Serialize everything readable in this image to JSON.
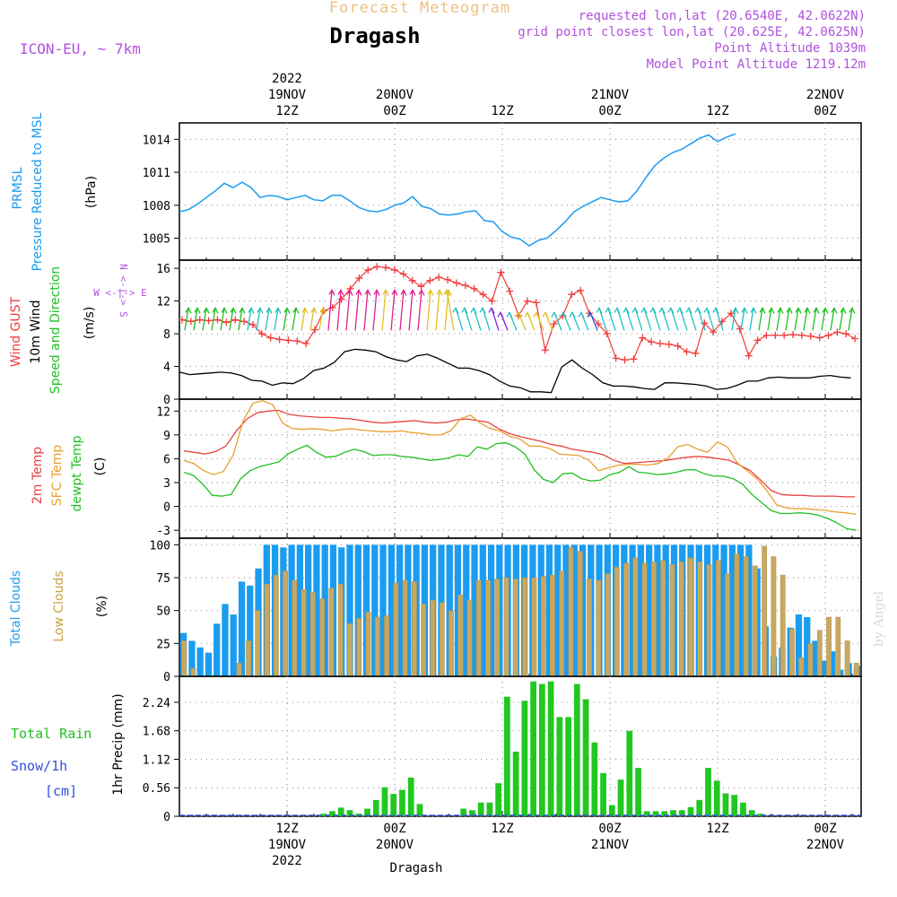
{
  "header": {
    "product_title": "Forecast Meteogram",
    "station": "Dragash",
    "model": "ICON-EU, ~ 7km",
    "requested": "requested lon,lat (20.6540E, 42.0622N)",
    "gridpoint": "grid point closest lon,lat (20.625E, 42.0625N)",
    "point_alt": "Point Altitude 1039m",
    "model_alt": "Model Point Altitude 1219.12m",
    "footer_station": "Dragash",
    "watermark": "by Angel"
  },
  "colors": {
    "pressure": "#1a9cf0",
    "gust": "#f03c3c",
    "wind10m": "#000000",
    "wind_label": "#20c020",
    "temp2m": "#e84040",
    "sfctemp": "#e8a030",
    "dewpoint": "#20c020",
    "total_clouds": "#1a9cf0",
    "low_clouds": "#c8a860",
    "rain": "#20c820",
    "snow_label": "#3050e0",
    "header_purple": "#b050e0",
    "title_orange": "#f0c080"
  },
  "time_axis": {
    "top": [
      {
        "h": 12,
        "l1": "2022",
        "l2": "19NOV",
        "l3": "12Z"
      },
      {
        "h": 24,
        "l1": "",
        "l2": "20NOV",
        "l3": "00Z"
      },
      {
        "h": 36,
        "l1": "",
        "l2": "",
        "l3": "12Z"
      },
      {
        "h": 48,
        "l1": "",
        "l2": "21NOV",
        "l3": "00Z"
      },
      {
        "h": 60,
        "l1": "",
        "l2": "",
        "l3": "12Z"
      },
      {
        "h": 72,
        "l1": "",
        "l2": "22NOV",
        "l3": "00Z"
      }
    ],
    "bottom": [
      {
        "h": 12,
        "l1": "12Z",
        "l2": "19NOV",
        "l3": "2022"
      },
      {
        "h": 24,
        "l1": "00Z",
        "l2": "20NOV",
        "l3": ""
      },
      {
        "h": 36,
        "l1": "12Z",
        "l2": "",
        "l3": ""
      },
      {
        "h": 48,
        "l1": "00Z",
        "l2": "21NOV",
        "l3": ""
      },
      {
        "h": 60,
        "l1": "12Z",
        "l2": "",
        "l3": ""
      },
      {
        "h": 72,
        "l1": "00Z",
        "l2": "22NOV",
        "l3": ""
      }
    ]
  },
  "panel_labels": {
    "pressure": {
      "line1": "PRMSL",
      "line2": "Pressure Reduced to MSL",
      "unit": "(hPa)"
    },
    "wind": {
      "line1": "Wind GUST",
      "line2": "10m Wind",
      "line3": "Speed and Direction",
      "unit": "(m/s)",
      "compass_ns": "N <-|-> S",
      "compass_we": "W <-|-> E"
    },
    "temp": {
      "line1": "2m Temp",
      "line2": "SFC Temp",
      "line3": "dewpt Temp",
      "unit": "(C)"
    },
    "clouds": {
      "line1": "Total Clouds",
      "line2": "Low Clouds",
      "unit": "(%)"
    },
    "precip": {
      "line1": "Total Rain",
      "line2": "Snow/1h",
      "line3": "[cm]",
      "unit": "1hr Precip (mm)"
    }
  },
  "chart_data": [
    {
      "type": "line",
      "title": "PRMSL Pressure Reduced to MSL",
      "ylabel": "(hPa)",
      "ylim": [
        1003,
        1015.5
      ],
      "yticks": [
        1005,
        1008,
        1011,
        1014
      ],
      "x_hours": [
        0,
        1,
        2,
        3,
        4,
        5,
        6,
        7,
        8,
        9,
        10,
        11,
        12,
        13,
        14,
        15,
        16,
        17,
        18,
        19,
        20,
        21,
        22,
        23,
        24,
        25,
        26,
        27,
        28,
        29,
        30,
        31,
        32,
        33,
        34,
        35,
        36,
        37,
        38,
        39,
        40,
        41,
        42,
        43,
        44,
        45,
        46,
        47,
        48,
        49,
        50,
        51,
        52,
        53,
        54,
        55,
        56,
        57,
        58,
        59,
        60,
        61,
        62,
        63,
        64,
        65,
        66,
        67,
        68,
        69,
        70,
        71,
        72,
        73,
        74,
        75
      ],
      "series": [
        {
          "name": "PRMSL",
          "values": [
            1007.4,
            1007.6,
            1008.1,
            1008.7,
            1009.3,
            1010.0,
            1009.6,
            1010.1,
            1009.6,
            1008.7,
            1008.9,
            1008.8,
            1008.5,
            1008.7,
            1008.9,
            1008.5,
            1008.4,
            1008.9,
            1008.9,
            1008.4,
            1007.8,
            1007.5,
            1007.4,
            1007.6,
            1008.0,
            1008.2,
            1008.8,
            1007.9,
            1007.7,
            1007.2,
            1007.1,
            1007.2,
            1007.4,
            1007.5,
            1006.6,
            1006.5,
            1005.6,
            1005.1,
            1004.9,
            1004.3,
            1004.8,
            1005.0,
            1005.7,
            1006.5,
            1007.4,
            1007.9,
            1008.3,
            1008.7,
            1008.5,
            1008.3,
            1008.4,
            1009.3,
            1010.5,
            1011.6,
            1012.3,
            1012.8,
            1013.1,
            1013.6,
            1014.1,
            1014.4,
            1013.8,
            1014.2,
            1014.5
          ]
        }
      ]
    },
    {
      "type": "line",
      "title": "Wind GUST / 10m Wind Speed and Direction",
      "ylabel": "(m/s)",
      "ylim": [
        0,
        17
      ],
      "yticks": [
        0,
        4,
        8,
        12,
        16
      ],
      "x_hours_note": "hourly from forecast start",
      "series": [
        {
          "name": "Wind GUST",
          "values": [
            9.7,
            9.5,
            9.7,
            9.6,
            9.7,
            9.4,
            9.7,
            9.5,
            9.1,
            8.0,
            7.5,
            7.3,
            7.2,
            7.1,
            6.8,
            8.5,
            10.8,
            11.2,
            12.2,
            13.5,
            14.8,
            15.8,
            16.2,
            16.1,
            15.8,
            15.3,
            14.5,
            13.8,
            14.5,
            14.9,
            14.6,
            14.2,
            13.9,
            13.5,
            12.8,
            12.0,
            15.5,
            13.2,
            10.2,
            12.0,
            11.8,
            6.0,
            9.2,
            10.2,
            12.8,
            13.3,
            10.5,
            9.2,
            8.0,
            5.0,
            4.8,
            4.9,
            7.5,
            7.0,
            6.8,
            6.7,
            6.5,
            5.8,
            5.6,
            9.3,
            8.2,
            9.5,
            10.5,
            8.6,
            5.3,
            7.2,
            7.8,
            7.8,
            7.8,
            7.9,
            7.8,
            7.7,
            7.5,
            7.8,
            8.2,
            8.0,
            7.4
          ]
        },
        {
          "name": "10m Wind",
          "values": [
            3.3,
            3.0,
            3.1,
            3.2,
            3.3,
            3.2,
            2.9,
            2.3,
            2.2,
            1.7,
            2.0,
            1.9,
            2.5,
            3.5,
            3.8,
            4.5,
            5.8,
            6.1,
            6.0,
            5.8,
            5.2,
            4.8,
            4.6,
            5.3,
            5.5,
            5.0,
            4.4,
            3.8,
            3.8,
            3.5,
            3.0,
            2.2,
            1.6,
            1.4,
            0.9,
            0.9,
            0.8,
            3.9,
            4.8,
            3.8,
            3.0,
            2.0,
            1.6,
            1.6,
            1.5,
            1.3,
            1.2,
            2.0,
            2.0,
            1.9,
            1.8,
            1.6,
            1.2,
            1.3,
            1.7,
            2.2,
            2.2,
            2.6,
            2.7,
            2.6,
            2.6,
            2.6,
            2.8,
            2.9,
            2.7,
            2.6
          ]
        }
      ]
    },
    {
      "type": "line",
      "title": "2m Temp / SFC Temp / dewpt Temp",
      "ylabel": "(C)",
      "ylim": [
        -4,
        13.5
      ],
      "yticks": [
        -3,
        0,
        3,
        6,
        9,
        12
      ],
      "series": [
        {
          "name": "2m Temp",
          "values": [
            7.0,
            6.8,
            6.6,
            6.9,
            7.6,
            9.5,
            11.0,
            11.8,
            12.0,
            12.1,
            11.6,
            11.4,
            11.3,
            11.2,
            11.2,
            11.1,
            11.0,
            10.8,
            10.6,
            10.5,
            10.6,
            10.7,
            10.8,
            10.6,
            10.5,
            10.6,
            10.9,
            11.0,
            10.8,
            10.6,
            9.8,
            9.2,
            8.8,
            8.5,
            8.2,
            7.8,
            7.6,
            7.2,
            7.0,
            6.8,
            6.5,
            5.8,
            5.4,
            5.5,
            5.6,
            5.7,
            5.8,
            6.0,
            6.2,
            6.3,
            6.2,
            6.0,
            5.8,
            5.2,
            4.5,
            3.3,
            2.0,
            1.5,
            1.4,
            1.4,
            1.3,
            1.3,
            1.3,
            1.2,
            1.2
          ]
        },
        {
          "name": "SFC Temp",
          "values": [
            5.8,
            5.4,
            4.5,
            4.0,
            4.4,
            6.5,
            10.8,
            13.0,
            13.3,
            12.8,
            10.5,
            9.8,
            9.7,
            9.8,
            9.7,
            9.5,
            9.7,
            9.8,
            9.6,
            9.5,
            9.4,
            9.4,
            9.5,
            9.3,
            9.2,
            9.0,
            9.0,
            9.5,
            11.0,
            11.5,
            10.5,
            9.8,
            9.5,
            8.8,
            8.5,
            7.6,
            7.6,
            7.3,
            6.6,
            6.5,
            6.4,
            5.8,
            4.5,
            4.9,
            5.2,
            5.3,
            5.3,
            5.2,
            5.4,
            6.1,
            7.5,
            7.8,
            7.2,
            6.8,
            8.1,
            7.5,
            5.5,
            4.5,
            3.5,
            2.0,
            0.2,
            -0.2,
            -0.3,
            -0.3,
            -0.4,
            -0.5,
            -0.7,
            -0.8,
            -1.0
          ]
        },
        {
          "name": "dewpt Temp",
          "values": [
            4.3,
            3.9,
            2.8,
            1.4,
            1.3,
            1.5,
            3.5,
            4.5,
            5.0,
            5.3,
            5.6,
            6.6,
            7.2,
            7.7,
            6.8,
            6.2,
            6.3,
            6.8,
            7.2,
            6.9,
            6.4,
            6.5,
            6.5,
            6.3,
            6.2,
            6.0,
            5.8,
            5.9,
            6.1,
            6.5,
            6.3,
            7.5,
            7.2,
            7.9,
            8.0,
            7.5,
            6.6,
            4.6,
            3.4,
            3.0,
            4.1,
            4.2,
            3.5,
            3.2,
            3.3,
            4.0,
            4.3,
            5.0,
            4.3,
            4.2,
            4.0,
            4.1,
            4.3,
            4.6,
            4.6,
            4.1,
            3.8,
            3.8,
            3.5,
            2.8,
            1.5,
            0.5,
            -0.5,
            -0.9,
            -0.9,
            -0.8,
            -0.9,
            -1.1,
            -1.5,
            -2.1,
            -2.8,
            -3.0
          ]
        }
      ]
    },
    {
      "type": "bar",
      "title": "Total Clouds / Low Clouds",
      "ylabel": "(%)",
      "ylim": [
        0,
        105
      ],
      "yticks": [
        0,
        25,
        50,
        75,
        100
      ],
      "series": [
        {
          "name": "Total Clouds",
          "values": [
            33,
            27,
            22,
            18,
            40,
            55,
            47,
            72,
            69,
            82,
            100,
            100,
            98,
            100,
            100,
            100,
            100,
            100,
            100,
            98,
            100,
            100,
            100,
            100,
            100,
            100,
            100,
            100,
            100,
            100,
            100,
            100,
            100,
            100,
            100,
            100,
            100,
            100,
            100,
            100,
            100,
            100,
            100,
            100,
            100,
            100,
            100,
            100,
            100,
            100,
            100,
            100,
            100,
            100,
            100,
            100,
            100,
            100,
            100,
            100,
            100,
            100,
            100,
            100,
            100,
            100,
            100,
            100,
            100,
            82,
            38,
            15,
            22,
            37,
            47,
            45,
            27,
            12,
            19,
            5,
            10,
            8
          ]
        },
        {
          "name": "Low Clouds",
          "values": [
            27,
            6,
            0,
            0,
            0,
            0,
            10,
            27,
            50,
            70,
            77,
            80,
            73,
            66,
            64,
            59,
            67,
            70,
            40,
            44,
            49,
            45,
            46,
            71,
            73,
            72,
            55,
            58,
            56,
            50,
            62,
            58,
            73,
            73,
            74,
            75,
            74,
            75,
            75,
            76,
            77,
            80,
            98,
            95,
            74,
            73,
            78,
            83,
            86,
            90,
            86,
            87,
            88,
            85,
            87,
            90,
            87,
            85,
            88,
            78,
            93,
            91,
            84,
            99,
            91,
            77,
            36,
            14,
            25,
            35,
            45,
            45,
            27,
            10
          ]
        }
      ]
    },
    {
      "type": "bar",
      "title": "1hr Precip (mm)",
      "ylabel": "1hr Precip (mm)",
      "ylim": [
        0,
        2.75
      ],
      "yticks": [
        0,
        0.56,
        1.12,
        1.68,
        2.24
      ],
      "series": [
        {
          "name": "Total Rain",
          "values": [
            0,
            0,
            0,
            0,
            0,
            0,
            0,
            0,
            0,
            0,
            0,
            0,
            0,
            0,
            0,
            0,
            0.05,
            0.1,
            0.17,
            0.12,
            0.05,
            0.15,
            0.32,
            0.57,
            0.44,
            0.52,
            0.76,
            0.24,
            0,
            0,
            0,
            0,
            0.15,
            0.12,
            0.27,
            0.27,
            0.65,
            2.35,
            1.27,
            2.27,
            2.65,
            2.6,
            2.65,
            1.95,
            1.95,
            2.6,
            2.3,
            1.45,
            0.85,
            0.22,
            0.72,
            1.68,
            0.95,
            0.1,
            0.1,
            0.1,
            0.12,
            0.12,
            0.18,
            0.32,
            0.95,
            0.7,
            0.45,
            0.42,
            0.27,
            0.12,
            0.05,
            0,
            0,
            0,
            0,
            0,
            0,
            0,
            0,
            0,
            0,
            0
          ]
        }
      ]
    }
  ]
}
